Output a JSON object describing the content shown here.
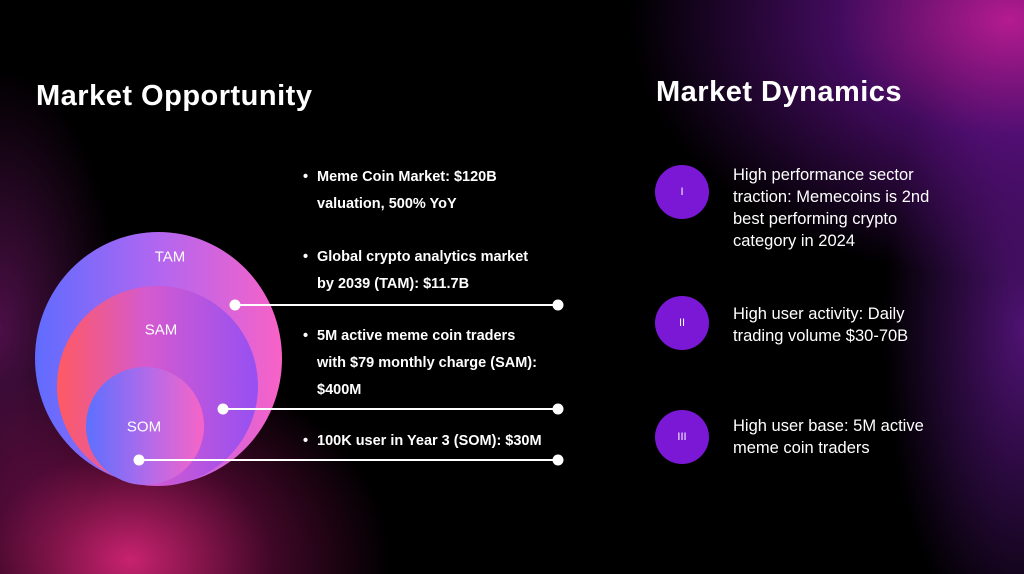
{
  "left": {
    "title": "Market Opportunity",
    "circles": {
      "tam": "TAM",
      "sam": "SAM",
      "som": "SOM"
    },
    "bullets": [
      {
        "line1": "Meme Coin Market: $120B",
        "line2": "valuation, 500% YoY"
      },
      {
        "line1": "Global crypto analytics market",
        "line2": "by 2039 (TAM): $11.7B"
      },
      {
        "line1": "5M active meme coin traders",
        "line2": "with $79 monthly charge (SAM):",
        "line3": "$400M"
      },
      {
        "line1": "100K user in Year 3 (SOM): $30M"
      }
    ]
  },
  "right": {
    "title": "Market Dynamics",
    "items": [
      {
        "numeral": "I",
        "text": "High performance sector traction: Memecoins is 2nd best performing crypto category in 2024"
      },
      {
        "numeral": "II",
        "text": "High user activity: Daily trading volume $30-70B"
      },
      {
        "numeral": "III",
        "text": "High user base: 5M active meme coin traders"
      }
    ]
  },
  "colors": {
    "numeral_circle": "#7a18d6",
    "background": "#000000"
  }
}
